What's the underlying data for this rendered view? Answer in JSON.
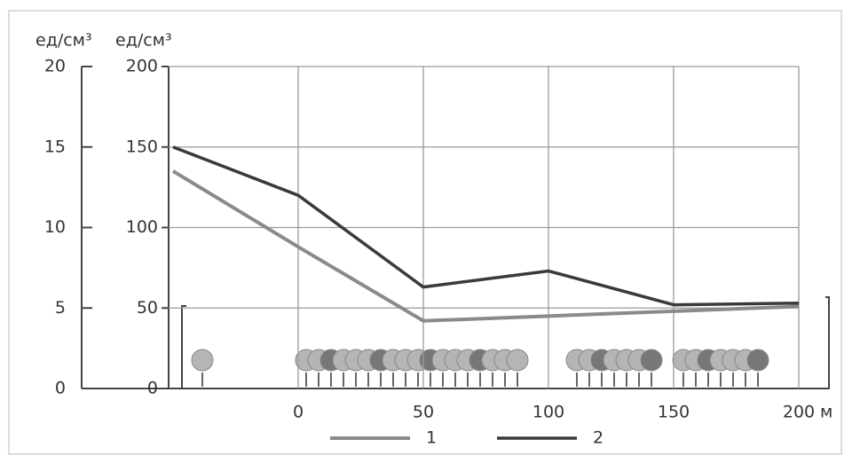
{
  "chart_data": {
    "type": "line",
    "ylabel": "ед/см³",
    "y2label": "ед/см³",
    "xlabel": "м",
    "x": [
      -50,
      0,
      50,
      100,
      150,
      200
    ],
    "series": [
      {
        "name": "1",
        "color": "#8a8a8a",
        "values": [
          135,
          88,
          42,
          45,
          48,
          51
        ]
      },
      {
        "name": "2",
        "color": "#3a3a3a",
        "values": [
          150,
          120,
          63,
          73,
          52,
          53
        ]
      }
    ],
    "xlim": [
      -50,
      200
    ],
    "xticks": [
      0,
      50,
      100,
      150,
      200
    ],
    "ylim": [
      0,
      200
    ],
    "yticks": [
      0,
      50,
      100,
      150,
      200
    ],
    "y2lim": [
      0,
      20
    ],
    "y2ticks": [
      0,
      5,
      10,
      15,
      20
    ],
    "grid": true
  }
}
